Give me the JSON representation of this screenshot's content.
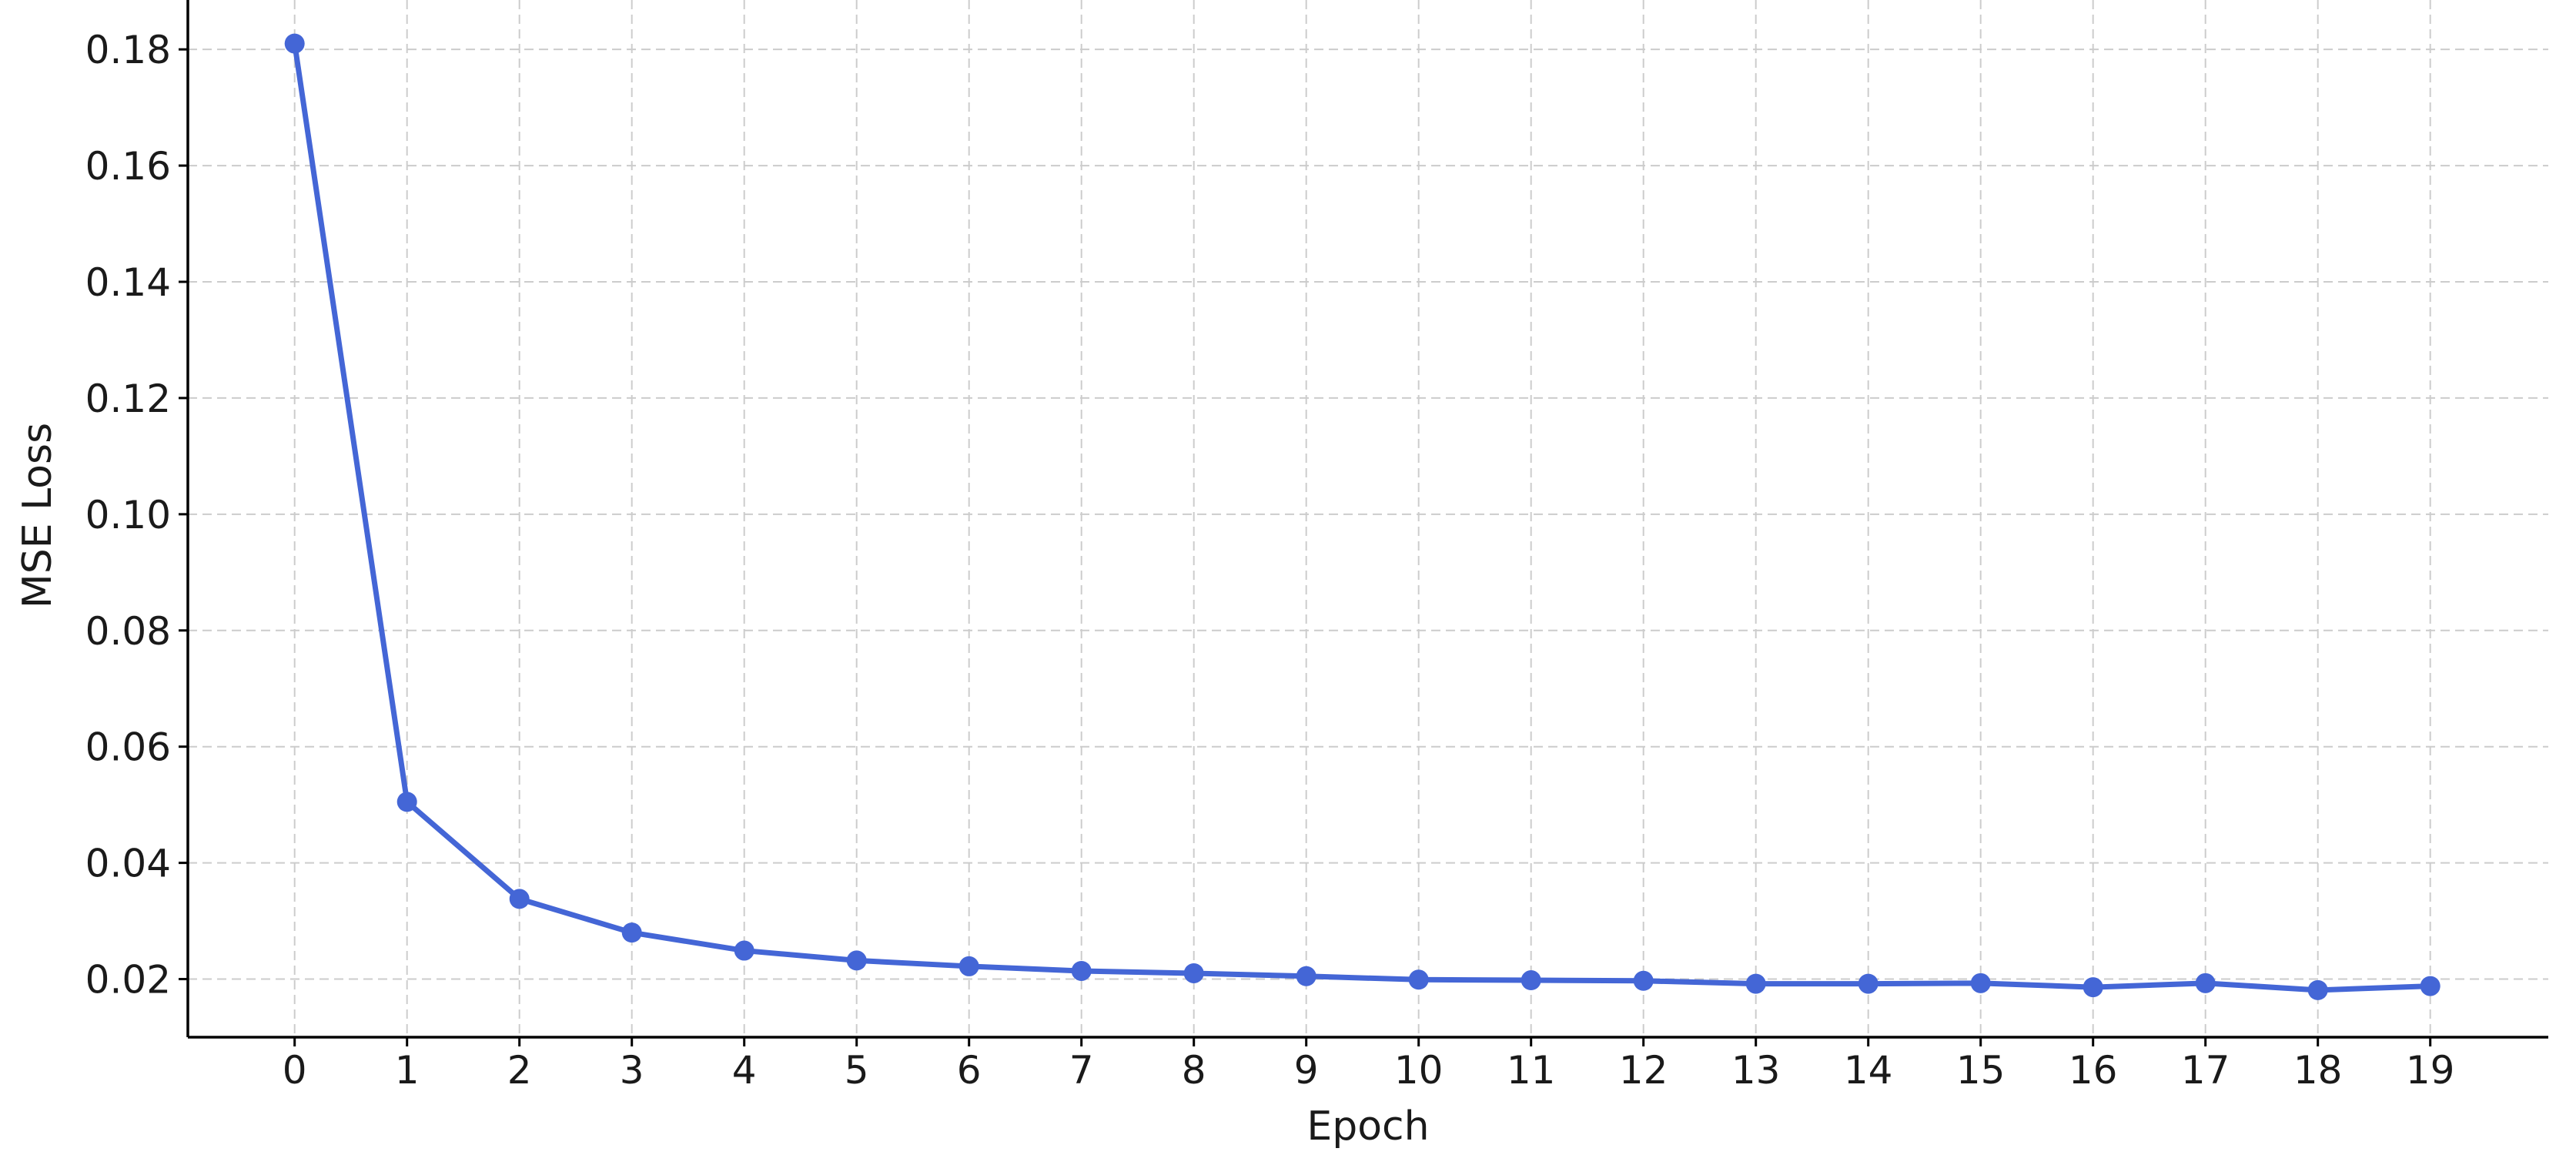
{
  "chart_data": {
    "type": "line",
    "title": "",
    "xlabel": "Epoch",
    "ylabel": "MSE Loss",
    "x": [
      0,
      1,
      2,
      3,
      4,
      5,
      6,
      7,
      8,
      9,
      10,
      11,
      12,
      13,
      14,
      15,
      16,
      17,
      18,
      19
    ],
    "series": [
      {
        "values": [
          0.181,
          0.0505,
          0.0338,
          0.028,
          0.0249,
          0.0232,
          0.0222,
          0.0214,
          0.021,
          0.0205,
          0.0199,
          0.0198,
          0.0197,
          0.0192,
          0.0192,
          0.0193,
          0.0186,
          0.0193,
          0.0181,
          0.0188
        ],
        "color": "#4466d6"
      }
    ],
    "xticks": [
      "0",
      "1",
      "2",
      "3",
      "4",
      "5",
      "6",
      "7",
      "8",
      "9",
      "10",
      "11",
      "12",
      "13",
      "14",
      "15",
      "16",
      "17",
      "18",
      "19"
    ],
    "yticks": [
      0.02,
      0.04,
      0.06,
      0.08,
      0.1,
      0.12,
      0.14,
      0.16,
      0.18
    ],
    "ytick_labels": [
      "0.02",
      "0.04",
      "0.06",
      "0.08",
      "0.10",
      "0.12",
      "0.14",
      "0.16",
      "0.18"
    ],
    "xlim": [
      -0.95,
      20.05
    ],
    "ylim": [
      0.01,
      0.1885
    ],
    "grid": true,
    "marker": "circle",
    "legend": "none"
  }
}
